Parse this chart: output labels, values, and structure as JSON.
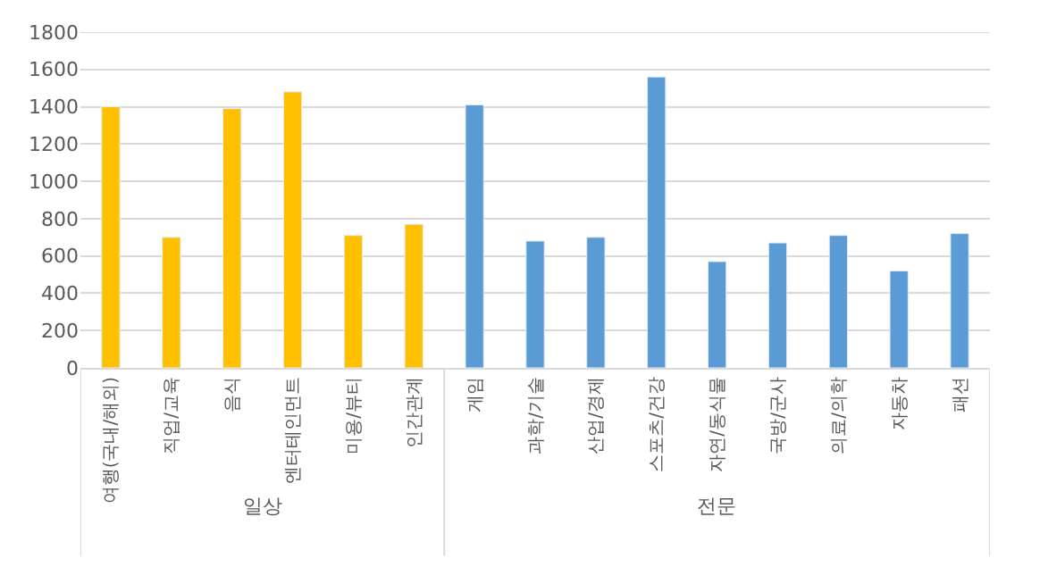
{
  "chart_data": {
    "type": "bar",
    "categories": [
      "여행(국내/해외)",
      "직업/교육",
      "음식",
      "엔터테인먼트",
      "미용/뷰티",
      "인간관계",
      "게임",
      "과학/기술",
      "산업/경제",
      "스포츠/건강",
      "자연/동식물",
      "국방/군사",
      "의료/의학",
      "자동차",
      "패션"
    ],
    "series": [
      {
        "color": "#ffc000",
        "values": [
          1400,
          700,
          1390,
          1480,
          710,
          770,
          null,
          null,
          null,
          null,
          null,
          null,
          null,
          null,
          null
        ]
      },
      {
        "color": "#5b9bd5",
        "values": [
          null,
          null,
          null,
          null,
          null,
          null,
          1410,
          680,
          700,
          1560,
          570,
          670,
          710,
          520,
          720
        ]
      }
    ],
    "annotations": [
      "일상",
      "전문"
    ],
    "ylim": [
      0,
      1800
    ],
    "yticks": [
      0,
      200,
      400,
      600,
      800,
      1000,
      1200,
      1400,
      1600,
      1800
    ],
    "grid": "y"
  }
}
